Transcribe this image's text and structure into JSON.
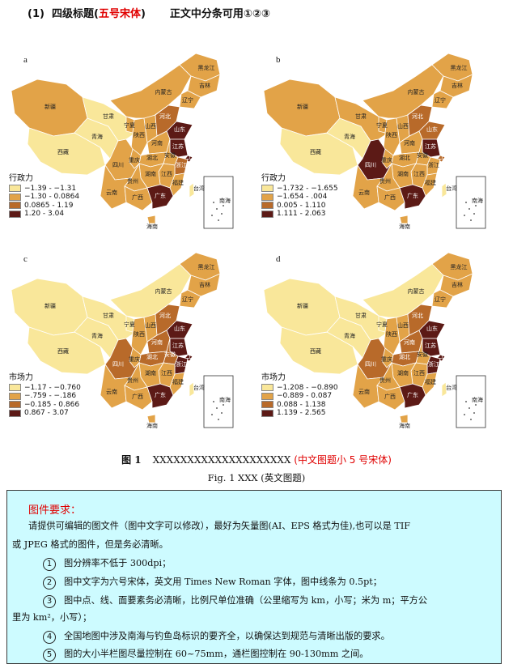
{
  "heading": {
    "number": "(1)",
    "title": "四级标题(",
    "title_red": "五号宋体",
    "title_end": ")",
    "note": "正文中分条可用①②③"
  },
  "panels": [
    {
      "letter": "a",
      "legend_title": "行政力",
      "legend_items": [
        "−1.39 - −1.31",
        "−1.30 - 0.0864",
        "0.0865 - 1.19",
        "1.20 - 3.04"
      ]
    },
    {
      "letter": "b",
      "legend_title": "行政力",
      "legend_items": [
        "−1.732 - −1.655",
        "−1.654 - .004",
        "0.005 - 1.110",
        "1.111 - 2.063"
      ]
    },
    {
      "letter": "c",
      "legend_title": "市场力",
      "legend_items": [
        "−1.17 - −0.760",
        "−.759 - −.186",
        "−0.185 - 0.866",
        "0.867 - 3.07"
      ]
    },
    {
      "letter": "d",
      "legend_title": "市场力",
      "legend_items": [
        "−1.208 - −0.890",
        "−0.889 - 0.087",
        "0.088 - 1.138",
        "1.139 - 2.565"
      ]
    }
  ],
  "colors": {
    "class1": "#f9e79a",
    "class2": "#e2a348",
    "class3": "#b86a2a",
    "class4": "#5c1a16",
    "border": "#ffffff",
    "caption_red": "#e00000",
    "box_bg": "#cdfbff"
  },
  "province_labels": {
    "heilongjiang": "黑龙江",
    "jilin": "吉林",
    "liaoning": "辽宁",
    "neimenggu": "内蒙古",
    "xinjiang": "新疆",
    "gansu": "甘肃",
    "ningxia": "宁夏",
    "shanxi": "山西",
    "hebei": "河北",
    "shandong": "山东",
    "henan": "河南",
    "shaanxi": "陕西",
    "qinghai": "青海",
    "xizang": "西藏",
    "sichuan": "四川",
    "chongqing": "重庆",
    "hubei": "湖北",
    "anhui": "安徽",
    "jiangsu": "江苏",
    "shanghai": "上海",
    "zhejiang": "浙江",
    "jiangxi": "江西",
    "hunan": "湖南",
    "guizhou": "贵州",
    "yunnan": "云南",
    "guangxi": "广西",
    "guangdong": "广东",
    "fujian": "福建",
    "taiwan": "台湾",
    "hainan": "海南",
    "nanhai": "南海"
  },
  "province_classes": [
    {
      "heilongjiang": 2,
      "jilin": 2,
      "liaoning": 2,
      "neimenggu": 2,
      "xinjiang": 2,
      "gansu": 1,
      "ningxia": 2,
      "shanxi": 2,
      "hebei": 3,
      "shandong": 4,
      "henan": 2,
      "shaanxi": 2,
      "qinghai": 1,
      "xizang": 1,
      "sichuan": 2,
      "chongqing": 2,
      "hubei": 2,
      "anhui": 2,
      "jiangsu": 4,
      "shanghai": 4,
      "zhejiang": 3,
      "jiangxi": 2,
      "hunan": 2,
      "guizhou": 2,
      "yunnan": 2,
      "guangxi": 2,
      "guangdong": 4,
      "fujian": 2,
      "hainan": 2,
      "taiwan": 1
    },
    {
      "heilongjiang": 2,
      "jilin": 2,
      "liaoning": 2,
      "neimenggu": 2,
      "xinjiang": 2,
      "gansu": 2,
      "ningxia": 2,
      "shanxi": 2,
      "hebei": 3,
      "shandong": 3,
      "henan": 2,
      "shaanxi": 2,
      "qinghai": 1,
      "xizang": 1,
      "sichuan": 4,
      "chongqing": 2,
      "hubei": 2,
      "anhui": 2,
      "jiangsu": 4,
      "shanghai": 3,
      "zhejiang": 2,
      "jiangxi": 2,
      "hunan": 2,
      "guizhou": 2,
      "yunnan": 2,
      "guangxi": 2,
      "guangdong": 4,
      "fujian": 2,
      "hainan": 2,
      "taiwan": 1
    },
    {
      "heilongjiang": 2,
      "jilin": 2,
      "liaoning": 2,
      "neimenggu": 1,
      "xinjiang": 1,
      "gansu": 1,
      "ningxia": 1,
      "shanxi": 2,
      "hebei": 3,
      "shandong": 4,
      "henan": 3,
      "shaanxi": 2,
      "qinghai": 1,
      "xizang": 1,
      "sichuan": 3,
      "chongqing": 2,
      "hubei": 3,
      "anhui": 3,
      "jiangsu": 4,
      "shanghai": 4,
      "zhejiang": 4,
      "jiangxi": 2,
      "hunan": 2,
      "guizhou": 2,
      "yunnan": 2,
      "guangxi": 2,
      "guangdong": 4,
      "fujian": 2,
      "hainan": 2,
      "taiwan": 1
    },
    {
      "heilongjiang": 2,
      "jilin": 2,
      "liaoning": 2,
      "neimenggu": 1,
      "xinjiang": 1,
      "gansu": 1,
      "ningxia": 1,
      "shanxi": 2,
      "hebei": 3,
      "shandong": 4,
      "henan": 3,
      "shaanxi": 2,
      "qinghai": 1,
      "xizang": 1,
      "sichuan": 3,
      "chongqing": 2,
      "hubei": 3,
      "anhui": 2,
      "jiangsu": 4,
      "shanghai": 4,
      "zhejiang": 4,
      "jiangxi": 2,
      "hunan": 2,
      "guizhou": 2,
      "yunnan": 2,
      "guangxi": 2,
      "guangdong": 4,
      "fujian": 2,
      "hainan": 2,
      "taiwan": 1
    }
  ],
  "caption": {
    "cn_number": "图 1",
    "cn_text": "XXXXXXXXXXXXXXXXXXXX",
    "cn_note": "(中文图题小 5 号宋体)",
    "en": "Fig. 1    XXX (英文图题)"
  },
  "requirements": {
    "title": "图件要求：",
    "intro_1": "请提供可编辑的图文件（图中文字可以修改），最好为矢量图(AI、EPS 格式为佳),也可以是 TIF",
    "intro_2": "或 JPEG 格式的图件，但是务必清晰。",
    "items": [
      {
        "num": "1",
        "text": "图分辨率不低于 300dpi；"
      },
      {
        "num": "2",
        "text": "图中文字为六号宋体，英文用 Times New Roman 字体，图中线条为 0.5pt；"
      },
      {
        "num": "3",
        "text": "图中点、线、面要素务必清晰，比例尺单位准确（公里缩写为 km，小写；米为 m；平方公"
      },
      {
        "num": "4",
        "text": "全国地图中涉及南海与钓鱼岛标识的要齐全，以确保达到规范与清晰出版的要求。"
      },
      {
        "num": "5",
        "text": "图的大小半栏图尽量控制在 60~75mm，通栏图控制在 90-130mm 之间。"
      }
    ],
    "item3_cont": "里为 km²，小写）；"
  }
}
